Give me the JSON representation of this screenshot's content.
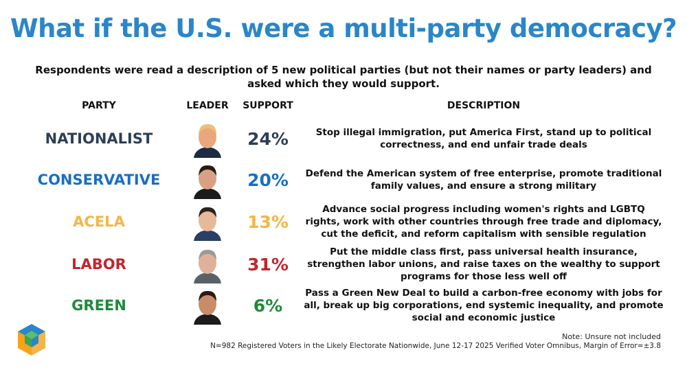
{
  "title": "What if the U.S. were a multi-party democracy?",
  "subtitle": "Respondents were read a description of 5 new political parties (but not their names or party leaders) and asked which they would support.",
  "headers": {
    "party": "PARTY",
    "leader": "LEADER",
    "support": "SUPPORT",
    "description": "DESCRIPTION"
  },
  "colors": {
    "title": "#2a86c8",
    "nationalist": "#2d3e57",
    "conservative": "#1b6ec2",
    "acela": "#f5b548",
    "labor": "#c0262c",
    "green": "#1f8a3a"
  },
  "chart_data": {
    "type": "table",
    "rows": [
      {
        "party": "NATIONALIST",
        "support": "24%",
        "value": 24,
        "color": "#2d3e57",
        "leader_icon": "leader-photo-nationalist",
        "description": "Stop illegal immigration, put America First, stand up to political correctness, and end unfair trade deals"
      },
      {
        "party": "CONSERVATIVE",
        "support": "20%",
        "value": 20,
        "color": "#1b6ec2",
        "leader_icon": "leader-photo-conservative",
        "description": "Defend the American system of free enterprise, promote traditional family values, and ensure a strong military"
      },
      {
        "party": "ACELA",
        "support": "13%",
        "value": 13,
        "color": "#f5b548",
        "leader_icon": "leader-photo-acela",
        "description": "Advance social progress including women's rights and LGBTQ rights, work with other countries through free trade and diplomacy, cut the deficit, and reform capitalism with sensible regulation"
      },
      {
        "party": "LABOR",
        "support": "31%",
        "value": 31,
        "color": "#c0262c",
        "leader_icon": "leader-photo-labor",
        "description": "Put the middle class first, pass universal health insurance, strengthen labor unions, and raise taxes on the wealthy to support programs for those less well off"
      },
      {
        "party": "GREEN",
        "support": "6%",
        "value": 6,
        "color": "#1f8a3a",
        "leader_icon": "leader-photo-green",
        "description": "Pass a Green New Deal to build a carbon-free economy with jobs for all, break up big corporations, end systemic inequality, and promote social and economic justice"
      }
    ]
  },
  "footer": {
    "note": "Note: Unsure not included",
    "source": "N=982 Registered Voters in the Likely Electorate Nationwide, June 12-17 2025 Verified Voter Omnibus, Margin of Error=±3.8",
    "logo_icon": "cube-logo-icon"
  }
}
